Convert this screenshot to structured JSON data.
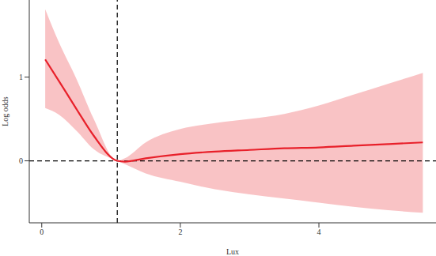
{
  "chart_data": {
    "type": "line",
    "x_label": "Lux",
    "y_label": "Log odds",
    "x": [
      0.05,
      0.25,
      0.5,
      0.75,
      1.09,
      1.2,
      1.5,
      2,
      2.5,
      3,
      3.5,
      4,
      4.5,
      5,
      5.5
    ],
    "values": [
      1.21,
      0.95,
      0.62,
      0.3,
      0,
      -0.01,
      0.03,
      0.08,
      0.11,
      0.13,
      0.15,
      0.16,
      0.18,
      0.2,
      0.22
    ],
    "lower": [
      0.63,
      0.55,
      0.36,
      0.14,
      0,
      -0.04,
      -0.15,
      -0.25,
      -0.34,
      -0.4,
      -0.45,
      -0.5,
      -0.55,
      -0.59,
      -0.62
    ],
    "upper": [
      1.81,
      1.41,
      0.98,
      0.5,
      0,
      0.03,
      0.22,
      0.38,
      0.45,
      0.5,
      0.56,
      0.66,
      0.79,
      0.92,
      1.05
    ],
    "color": "#e8202a",
    "xlim": [
      -0.18,
      5.69
    ],
    "ylim": [
      -0.74,
      1.92
    ],
    "xticks": [
      0,
      2,
      4
    ],
    "yticks": [
      0,
      1
    ],
    "reference_x": 1.09,
    "reference_y": 0
  }
}
